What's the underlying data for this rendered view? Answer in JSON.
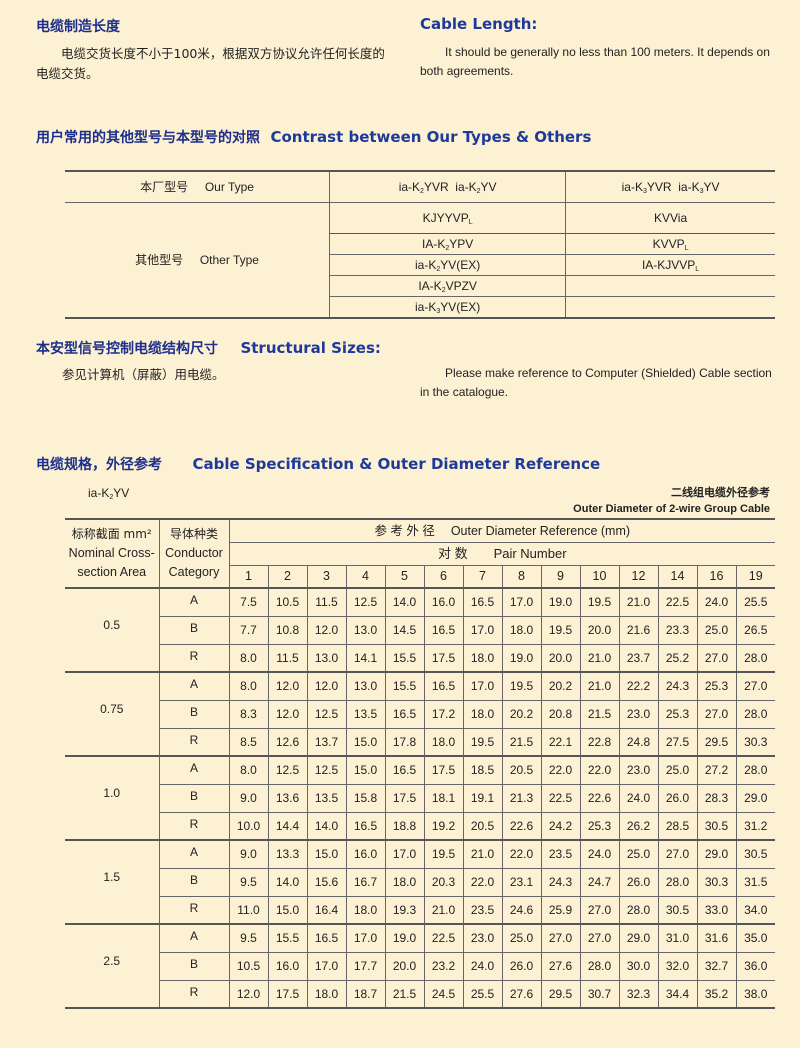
{
  "length": {
    "title_cn": "电缆制造长度",
    "text_cn": "电缆交货长度不小于100米，根据双方协议允许任何长度的电缆交货。",
    "title_en": "Cable Length:",
    "text_en": "It should be generally no less than 100 meters. It depends on both agreements."
  },
  "contrast": {
    "title_cn": "用户常用的其他型号与本型号的对照",
    "title_en": "Contrast between Our Types & Others",
    "our_type_cn": "本厂型号",
    "our_type_en": "Our Type",
    "other_type_cn": "其他型号",
    "other_type_en": "Other Type",
    "our_types": [
      [
        "ia-K",
        {
          "sub": "2"
        },
        "YVR  ia-K",
        {
          "sub": "2"
        },
        "YV"
      ],
      [
        "ia-K",
        {
          "sub": "3"
        },
        "YVR  ia-K",
        {
          "sub": "3"
        },
        "YV"
      ]
    ],
    "other_rows": [
      [
        [
          "KJYYVP",
          {
            "sub": "L"
          }
        ],
        [
          "KVVia"
        ]
      ],
      [
        [
          "IA-K",
          {
            "sub": "2"
          },
          "YPV"
        ],
        [
          "KVVP",
          {
            "sub": "L"
          }
        ]
      ],
      [
        [
          "ia-K",
          {
            "sub": "2"
          },
          "YV(EX)"
        ],
        [
          "IA-KJVVP",
          {
            "sub": "L"
          }
        ]
      ],
      [
        [
          "IA-K",
          {
            "sub": "2"
          },
          "VPZV"
        ],
        []
      ],
      [
        [
          "ia-K",
          {
            "sub": "3"
          },
          "YV(EX)"
        ],
        []
      ]
    ]
  },
  "structural": {
    "title_cn": "本安型信号控制电缆结构尺寸",
    "title_en": "Structural Sizes:",
    "text_cn": "参见计算机（屏蔽）用电缆。",
    "text_en": "Please make reference to Computer (Shielded) Cable section in the catalogue."
  },
  "spec": {
    "title_cn": "电缆规格，外径参考",
    "title_en": "Cable Specification & Outer Diameter Reference",
    "model": [
      "ia-K",
      {
        "sub": "2"
      },
      "YV"
    ],
    "caption_cn": "二线组电缆外径参考",
    "caption_en": "Outer Diameter of 2-wire Group Cable",
    "col_area_cn": "标称截面 mm²",
    "col_area_en1": "Nominal Cross-",
    "col_area_en2": "section Area",
    "col_cond_cn": "导体种类",
    "col_cond_en1": "Conductor",
    "col_cond_en2": "Category",
    "od_header": "参 考 外 径　 Outer Diameter Reference (mm)",
    "pair_header": "对 数　　Pair Number",
    "pairs": [
      "1",
      "2",
      "3",
      "4",
      "5",
      "6",
      "7",
      "8",
      "9",
      "10",
      "12",
      "14",
      "16",
      "19"
    ],
    "groups": [
      {
        "area": "0.5",
        "rows": [
          {
            "cat": "A",
            "values": [
              "7.5",
              "10.5",
              "11.5",
              "12.5",
              "14.0",
              "16.0",
              "16.5",
              "17.0",
              "19.0",
              "19.5",
              "21.0",
              "22.5",
              "24.0",
              "25.5"
            ]
          },
          {
            "cat": "B",
            "values": [
              "7.7",
              "10.8",
              "12.0",
              "13.0",
              "14.5",
              "16.5",
              "17.0",
              "18.0",
              "19.5",
              "20.0",
              "21.6",
              "23.3",
              "25.0",
              "26.5"
            ]
          },
          {
            "cat": "R",
            "values": [
              "8.0",
              "11.5",
              "13.0",
              "14.1",
              "15.5",
              "17.5",
              "18.0",
              "19.0",
              "20.0",
              "21.0",
              "23.7",
              "25.2",
              "27.0",
              "28.0"
            ]
          }
        ]
      },
      {
        "area": "0.75",
        "rows": [
          {
            "cat": "A",
            "values": [
              "8.0",
              "12.0",
              "12.0",
              "13.0",
              "15.5",
              "16.5",
              "17.0",
              "19.5",
              "20.2",
              "21.0",
              "22.2",
              "24.3",
              "25.3",
              "27.0"
            ]
          },
          {
            "cat": "B",
            "values": [
              "8.3",
              "12.0",
              "12.5",
              "13.5",
              "16.5",
              "17.2",
              "18.0",
              "20.2",
              "20.8",
              "21.5",
              "23.0",
              "25.3",
              "27.0",
              "28.0"
            ]
          },
          {
            "cat": "R",
            "values": [
              "8.5",
              "12.6",
              "13.7",
              "15.0",
              "17.8",
              "18.0",
              "19.5",
              "21.5",
              "22.1",
              "22.8",
              "24.8",
              "27.5",
              "29.5",
              "30.3"
            ]
          }
        ]
      },
      {
        "area": "1.0",
        "rows": [
          {
            "cat": "A",
            "values": [
              "8.0",
              "12.5",
              "12.5",
              "15.0",
              "16.5",
              "17.5",
              "18.5",
              "20.5",
              "22.0",
              "22.0",
              "23.0",
              "25.0",
              "27.2",
              "28.0"
            ]
          },
          {
            "cat": "B",
            "values": [
              "9.0",
              "13.6",
              "13.5",
              "15.8",
              "17.5",
              "18.1",
              "19.1",
              "21.3",
              "22.5",
              "22.6",
              "24.0",
              "26.0",
              "28.3",
              "29.0"
            ]
          },
          {
            "cat": "R",
            "values": [
              "10.0",
              "14.4",
              "14.0",
              "16.5",
              "18.8",
              "19.2",
              "20.5",
              "22.6",
              "24.2",
              "25.3",
              "26.2",
              "28.5",
              "30.5",
              "31.2"
            ]
          }
        ]
      },
      {
        "area": "1.5",
        "rows": [
          {
            "cat": "A",
            "values": [
              "9.0",
              "13.3",
              "15.0",
              "16.0",
              "17.0",
              "19.5",
              "21.0",
              "22.0",
              "23.5",
              "24.0",
              "25.0",
              "27.0",
              "29.0",
              "30.5"
            ]
          },
          {
            "cat": "B",
            "values": [
              "9.5",
              "14.0",
              "15.6",
              "16.7",
              "18.0",
              "20.3",
              "22.0",
              "23.1",
              "24.3",
              "24.7",
              "26.0",
              "28.0",
              "30.3",
              "31.5"
            ]
          },
          {
            "cat": "R",
            "values": [
              "11.0",
              "15.0",
              "16.4",
              "18.0",
              "19.3",
              "21.0",
              "23.5",
              "24.6",
              "25.9",
              "27.0",
              "28.0",
              "30.5",
              "33.0",
              "34.0"
            ]
          }
        ]
      },
      {
        "area": "2.5",
        "rows": [
          {
            "cat": "A",
            "values": [
              "9.5",
              "15.5",
              "16.5",
              "17.0",
              "19.0",
              "22.5",
              "23.0",
              "25.0",
              "27.0",
              "27.0",
              "29.0",
              "31.0",
              "31.6",
              "35.0"
            ]
          },
          {
            "cat": "B",
            "values": [
              "10.5",
              "16.0",
              "17.0",
              "17.7",
              "20.0",
              "23.2",
              "24.0",
              "26.0",
              "27.6",
              "28.0",
              "30.0",
              "32.0",
              "32.7",
              "36.0"
            ]
          },
          {
            "cat": "R",
            "values": [
              "12.0",
              "17.5",
              "18.0",
              "18.7",
              "21.5",
              "24.5",
              "25.5",
              "27.6",
              "29.5",
              "30.7",
              "32.3",
              "34.4",
              "35.2",
              "38.0"
            ]
          }
        ]
      }
    ]
  },
  "colors": {
    "background": "#fdf1d3",
    "heading_cn": "#1d2f8a",
    "heading_en": "#1d3a9a"
  }
}
